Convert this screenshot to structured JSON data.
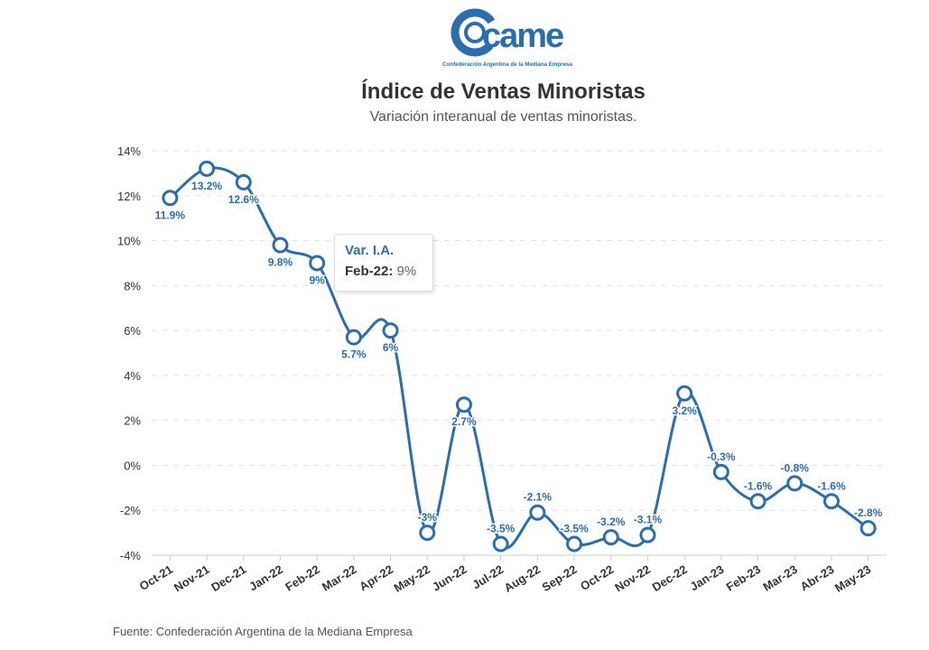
{
  "logo": {
    "wordmark": "came",
    "tagline": "Confederación Argentina de la Mediana Empresa",
    "color": "#2a6db0"
  },
  "title": "Índice de Ventas Minoristas",
  "subtitle": "Variación interanual de ventas minoristas.",
  "source": "Fuente: Confederación Argentina de la Mediana Empresa",
  "tooltip": {
    "series_name": "Var. I.A.",
    "category": "Feb-22:",
    "value": "9%"
  },
  "chart_data": {
    "type": "line",
    "title": "Índice de Ventas Minoristas",
    "subtitle": "Variación interanual de ventas minoristas.",
    "xlabel": "",
    "ylabel": "",
    "ylim": [
      -4,
      14
    ],
    "yticks": [
      -4,
      -2,
      0,
      2,
      4,
      6,
      8,
      10,
      12,
      14
    ],
    "ytick_labels": [
      "-4%",
      "-2%",
      "0%",
      "2%",
      "4%",
      "6%",
      "8%",
      "10%",
      "12%",
      "14%"
    ],
    "grid": true,
    "categories": [
      "Oct-21",
      "Nov-21",
      "Dec-21",
      "Jan-22",
      "Feb-22",
      "Mar-22",
      "Apr-22",
      "May-22",
      "Jun-22",
      "Jul-22",
      "Aug-22",
      "Sep-22",
      "Oct-22",
      "Nov-22",
      "Dec-22",
      "Jan-23",
      "Feb-23",
      "Mar-23",
      "Abr-23",
      "May-23"
    ],
    "series": [
      {
        "name": "Var. I.A.",
        "color": "#2a6db0",
        "values": [
          11.9,
          13.2,
          12.6,
          9.8,
          9,
          5.7,
          6,
          -3,
          2.7,
          -3.5,
          -2.1,
          -3.5,
          -3.2,
          -3.1,
          3.2,
          -0.3,
          -1.6,
          -0.8,
          -1.6,
          -2.8
        ],
        "data_labels": [
          "11.9%",
          "13.2%",
          "12.6%",
          "9.8%",
          "9%",
          "5.7%",
          "6%",
          "-3%",
          "2.7%",
          "-3.5%",
          "-2.1%",
          "-3.5%",
          "-3.2%",
          "-3.1%",
          "3.2%",
          "-0.3%",
          "-1.6%",
          "-0.8%",
          "-1.6%",
          "-2.8%"
        ],
        "label_position": [
          "below",
          "below",
          "below",
          "below",
          "below",
          "below",
          "below",
          "above",
          "below",
          "above",
          "above",
          "above",
          "above",
          "above",
          "below",
          "above",
          "above",
          "above",
          "above",
          "above"
        ]
      }
    ]
  }
}
